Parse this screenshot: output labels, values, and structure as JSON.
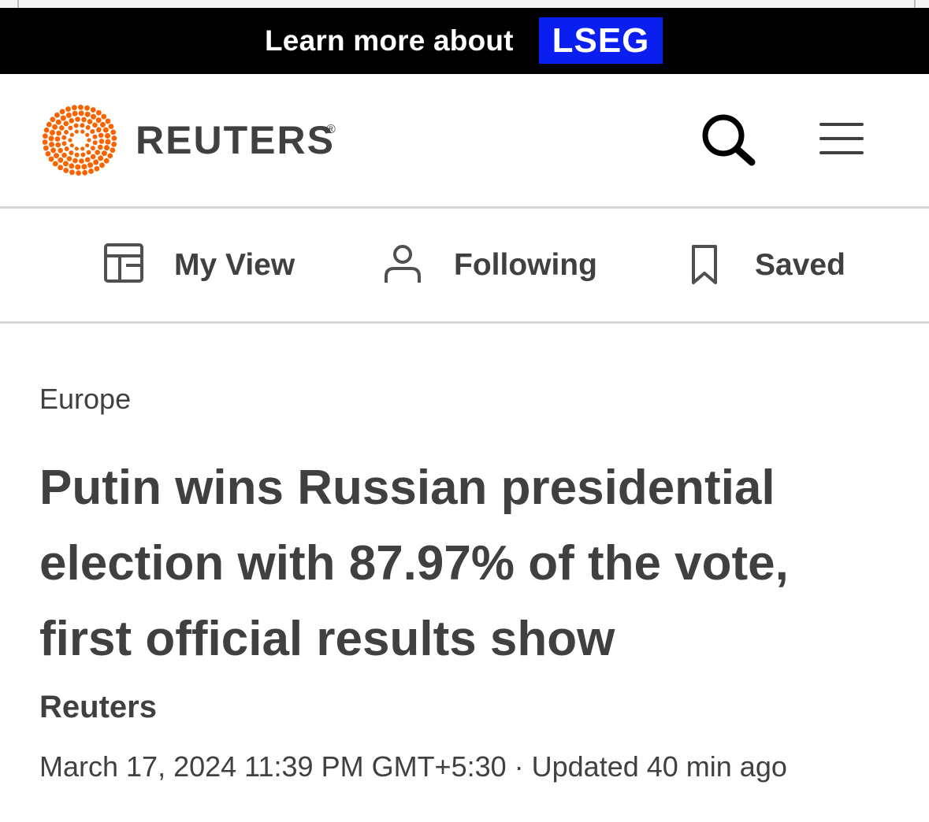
{
  "ad": {
    "text": "Learn more about",
    "logo": "LSEG",
    "logo_color": "#0a1ef0"
  },
  "header": {
    "brand": "REUTERS",
    "brand_mark": "®",
    "brand_color": "#fa6400",
    "search_icon": "search-icon",
    "menu_icon": "hamburger-menu-icon"
  },
  "nav": {
    "items": [
      {
        "label": "My View",
        "icon": "layout-icon"
      },
      {
        "label": "Following",
        "icon": "person-icon"
      },
      {
        "label": "Saved",
        "icon": "bookmark-icon"
      }
    ]
  },
  "article": {
    "section": "Europe",
    "headline": "Putin wins Russian presidential election with 87.97% of the vote, first official results show",
    "byline": "Reuters",
    "dateline": "March 17, 2024 11:39 PM GMT+5:30 · Updated 40 min ago"
  }
}
